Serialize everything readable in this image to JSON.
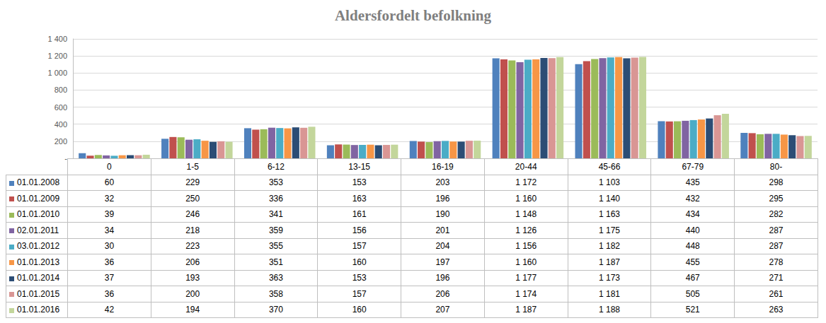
{
  "chart_data": {
    "type": "bar",
    "title": "Aldersfordelt befolkning",
    "categories": [
      "0",
      "1-5",
      "6-12",
      "13-15",
      "16-19",
      "20-44",
      "45-66",
      "67-79",
      "80-"
    ],
    "series": [
      {
        "name": "01.01.2008",
        "color": "#4F81BD",
        "values": [
          60,
          229,
          353,
          153,
          203,
          1172,
          1103,
          435,
          298
        ],
        "value_labels": [
          "60",
          "229",
          "353",
          "153",
          "203",
          "1 172",
          "1 103",
          "435",
          "298"
        ]
      },
      {
        "name": "01.01.2009",
        "color": "#C0504D",
        "values": [
          32,
          250,
          336,
          163,
          196,
          1160,
          1140,
          432,
          295
        ],
        "value_labels": [
          "32",
          "250",
          "336",
          "163",
          "196",
          "1 160",
          "1 140",
          "432",
          "295"
        ]
      },
      {
        "name": "01.01.2010",
        "color": "#9BBB59",
        "values": [
          39,
          246,
          341,
          161,
          190,
          1148,
          1163,
          434,
          282
        ],
        "value_labels": [
          "39",
          "246",
          "341",
          "161",
          "190",
          "1 148",
          "1 163",
          "434",
          "282"
        ]
      },
      {
        "name": "02.01.2011",
        "color": "#8064A2",
        "values": [
          34,
          218,
          359,
          156,
          201,
          1126,
          1175,
          440,
          287
        ],
        "value_labels": [
          "34",
          "218",
          "359",
          "156",
          "201",
          "1 126",
          "1 175",
          "440",
          "287"
        ]
      },
      {
        "name": "03.01.2012",
        "color": "#4BACC6",
        "values": [
          30,
          223,
          355,
          157,
          204,
          1156,
          1182,
          448,
          287
        ],
        "value_labels": [
          "30",
          "223",
          "355",
          "157",
          "204",
          "1 156",
          "1 182",
          "448",
          "287"
        ]
      },
      {
        "name": "01.01.2013",
        "color": "#F79646",
        "values": [
          36,
          206,
          351,
          160,
          197,
          1160,
          1187,
          455,
          278
        ],
        "value_labels": [
          "36",
          "206",
          "351",
          "160",
          "197",
          "1 160",
          "1 187",
          "455",
          "278"
        ]
      },
      {
        "name": "01.01.2014",
        "color": "#2C4D75",
        "values": [
          37,
          193,
          363,
          153,
          196,
          1177,
          1173,
          467,
          271
        ],
        "value_labels": [
          "37",
          "193",
          "363",
          "153",
          "196",
          "1 177",
          "1 173",
          "467",
          "271"
        ]
      },
      {
        "name": "01.01.2015",
        "color": "#D99694",
        "values": [
          36,
          200,
          358,
          157,
          206,
          1174,
          1181,
          505,
          261
        ],
        "value_labels": [
          "36",
          "200",
          "358",
          "157",
          "206",
          "1 174",
          "1 181",
          "505",
          "261"
        ]
      },
      {
        "name": "01.01.2016",
        "color": "#C3D69B",
        "values": [
          42,
          194,
          370,
          160,
          207,
          1187,
          1188,
          521,
          263
        ],
        "value_labels": [
          "42",
          "194",
          "370",
          "160",
          "207",
          "1 187",
          "1 188",
          "521",
          "263"
        ]
      }
    ],
    "ylim": [
      0,
      1400
    ],
    "yticks": [
      {
        "value": 0,
        "label": "-"
      },
      200,
      400,
      600,
      800,
      {
        "value": 1000,
        "label": "1 000"
      },
      {
        "value": 1200,
        "label": "1 200"
      },
      {
        "value": 1400,
        "label": "1 400"
      }
    ],
    "grid": true
  }
}
